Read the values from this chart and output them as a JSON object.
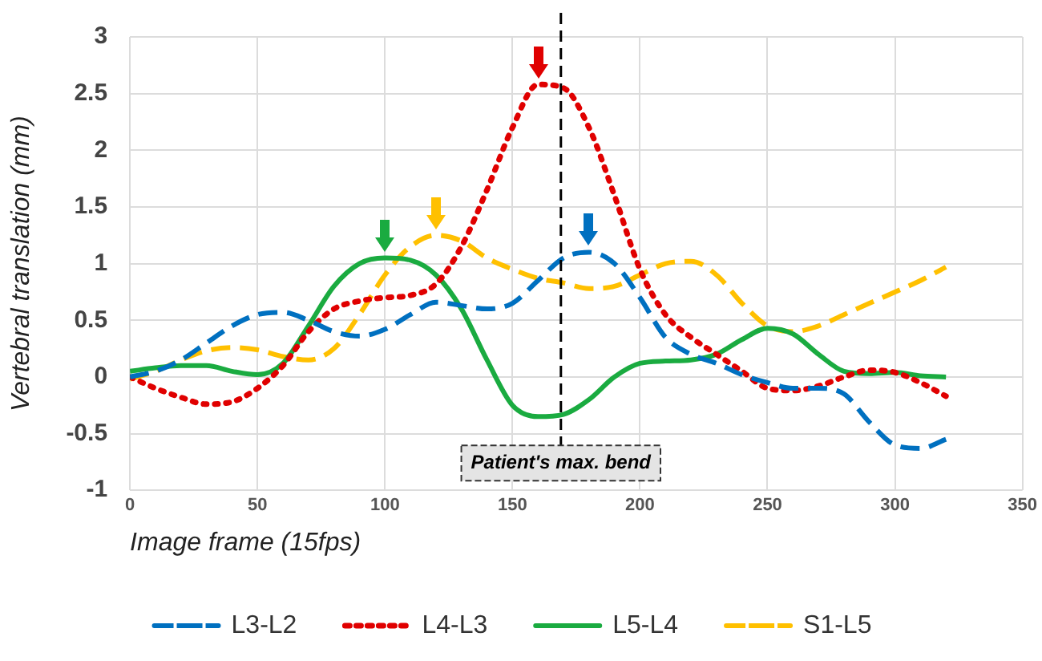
{
  "chart_data": {
    "type": "line",
    "xlabel": "Image frame (15fps)",
    "ylabel": "Vertebral translation (mm)",
    "x": [
      0,
      10,
      20,
      30,
      40,
      50,
      60,
      70,
      80,
      90,
      100,
      110,
      120,
      130,
      140,
      150,
      160,
      170,
      180,
      190,
      200,
      210,
      220,
      230,
      240,
      250,
      260,
      270,
      280,
      290,
      300,
      310,
      320
    ],
    "series": [
      {
        "name": "L3-L2",
        "color": "#0070c0",
        "line_style": "dashed",
        "values": [
          0,
          0.05,
          0.15,
          0.3,
          0.45,
          0.55,
          0.57,
          0.5,
          0.4,
          0.36,
          0.42,
          0.55,
          0.66,
          0.63,
          0.6,
          0.65,
          0.85,
          1.05,
          1.1,
          1.0,
          0.7,
          0.35,
          0.2,
          0.12,
          0.02,
          -0.05,
          -0.1,
          -0.1,
          -0.15,
          -0.4,
          -0.6,
          -0.63,
          -0.55
        ]
      },
      {
        "name": "L4-L3",
        "color": "#e00000",
        "line_style": "dotted",
        "values": [
          0,
          -0.1,
          -0.18,
          -0.24,
          -0.22,
          -0.1,
          0.1,
          0.4,
          0.6,
          0.67,
          0.7,
          0.72,
          0.82,
          1.15,
          1.65,
          2.2,
          2.58,
          2.55,
          2.2,
          1.6,
          0.95,
          0.55,
          0.35,
          0.2,
          0.05,
          -0.1,
          -0.12,
          -0.08,
          0.0,
          0.06,
          0.04,
          -0.05,
          -0.17
        ]
      },
      {
        "name": "L5-L4",
        "color": "#1aab40",
        "line_style": "solid",
        "values": [
          0.05,
          0.08,
          0.1,
          0.1,
          0.05,
          0.02,
          0.12,
          0.45,
          0.8,
          1.0,
          1.05,
          1.03,
          0.9,
          0.6,
          0.15,
          -0.25,
          -0.35,
          -0.33,
          -0.2,
          0.0,
          0.12,
          0.14,
          0.15,
          0.2,
          0.33,
          0.43,
          0.38,
          0.2,
          0.05,
          0.03,
          0.04,
          0.01,
          0.0
        ]
      },
      {
        "name": "S1-L5",
        "color": "#ffc000",
        "line_style": "dashed",
        "values": [
          -0.02,
          0.05,
          0.15,
          0.23,
          0.26,
          0.24,
          0.18,
          0.15,
          0.25,
          0.55,
          0.9,
          1.15,
          1.25,
          1.2,
          1.05,
          0.95,
          0.87,
          0.83,
          0.78,
          0.8,
          0.9,
          1.0,
          1.02,
          0.9,
          0.65,
          0.45,
          0.4,
          0.45,
          0.55,
          0.65,
          0.75,
          0.85,
          0.97
        ]
      }
    ],
    "xlim": [
      0,
      350
    ],
    "xticks": [
      0,
      50,
      100,
      150,
      200,
      250,
      300,
      350
    ],
    "ylim": [
      -1,
      3
    ],
    "yticks": [
      -1,
      -0.5,
      0,
      0.5,
      1,
      1.5,
      2,
      2.5,
      3
    ],
    "ref_lines": [
      {
        "axis": "x",
        "value": 169,
        "label": "Patient's max. bend",
        "color": "#000000",
        "line_style": "dashed"
      }
    ],
    "grid": true,
    "legend": "bottom",
    "marker": "none"
  }
}
